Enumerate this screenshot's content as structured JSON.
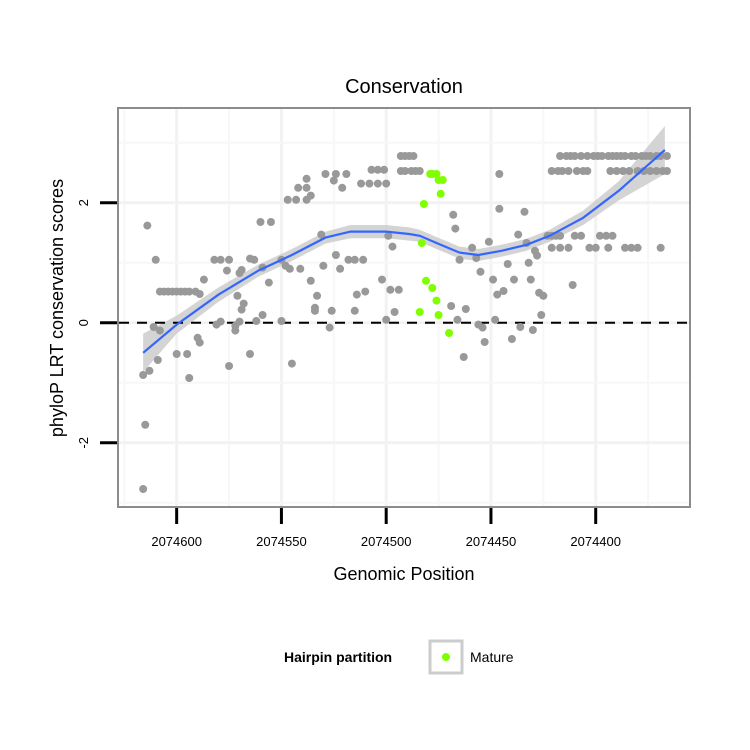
{
  "chart_data": {
    "type": "scatter",
    "title": "Conservation",
    "xlabel": "Genomic Position",
    "ylabel": "phyloP LRT conservation scores",
    "x_reversed": true,
    "xlim": [
      2074628,
      2074355
    ],
    "ylim": [
      -3.07,
      3.58
    ],
    "x_ticks": [
      2074600,
      2074550,
      2074500,
      2074450,
      2074400
    ],
    "x_tick_labels": [
      "2074600",
      "2074550",
      "2074500",
      "2074450",
      "2074400"
    ],
    "y_ticks": [
      -2,
      0,
      2
    ],
    "y_tick_labels": [
      "-2",
      "0",
      "2"
    ],
    "grid": true,
    "reference_line": {
      "y": 0,
      "style": "dashed"
    },
    "legend": {
      "title": "Hairpin partition",
      "position": "bottom",
      "entries": [
        {
          "label": "Mature",
          "color": "#7fff00"
        }
      ]
    },
    "colors": {
      "other": "#999999",
      "mature": "#7fff00",
      "smooth": "#3366ff",
      "band": "#cccccc"
    },
    "series": [
      {
        "key": "other",
        "points": [
          [
            2074616,
            -2.77
          ],
          [
            2074615,
            -1.7
          ],
          [
            2074614,
            1.62
          ],
          [
            2074616,
            -0.87
          ],
          [
            2074613,
            -0.8
          ],
          [
            2074609,
            -0.62
          ],
          [
            2074600,
            -0.52
          ],
          [
            2074595,
            -0.52
          ],
          [
            2074594,
            -0.92
          ],
          [
            2074610,
            1.05
          ],
          [
            2074608,
            0.52
          ],
          [
            2074606,
            0.52
          ],
          [
            2074604,
            0.52
          ],
          [
            2074602,
            0.52
          ],
          [
            2074600,
            0.52
          ],
          [
            2074598,
            0.52
          ],
          [
            2074596,
            0.52
          ],
          [
            2074594,
            0.52
          ],
          [
            2074591,
            0.52
          ],
          [
            2074589,
            0.48
          ],
          [
            2074611,
            -0.07
          ],
          [
            2074608,
            -0.13
          ],
          [
            2074590,
            -0.25
          ],
          [
            2074589,
            -0.33
          ],
          [
            2074587,
            0.72
          ],
          [
            2074582,
            1.05
          ],
          [
            2074579,
            1.05
          ],
          [
            2074575,
            1.05
          ],
          [
            2074576,
            0.87
          ],
          [
            2074570,
            0.83
          ],
          [
            2074570,
            0.02
          ],
          [
            2074579,
            0.02
          ],
          [
            2074581,
            -0.03
          ],
          [
            2074575,
            -0.72
          ],
          [
            2074572,
            -0.13
          ],
          [
            2074572,
            -0.05
          ],
          [
            2074571,
            0.45
          ],
          [
            2074568,
            0.32
          ],
          [
            2074569,
            0.22
          ],
          [
            2074565,
            -0.52
          ],
          [
            2074565,
            1.07
          ],
          [
            2074563,
            1.05
          ],
          [
            2074559,
            0.92
          ],
          [
            2074569,
            0.88
          ],
          [
            2074560,
            1.68
          ],
          [
            2074555,
            1.68
          ],
          [
            2074556,
            0.67
          ],
          [
            2074562,
            0.03
          ],
          [
            2074559,
            0.13
          ],
          [
            2074550,
            0.03
          ],
          [
            2074545,
            -0.68
          ],
          [
            2074550,
            1.05
          ],
          [
            2074548,
            0.95
          ],
          [
            2074546,
            0.9
          ],
          [
            2074541,
            0.9
          ],
          [
            2074536,
            0.7
          ],
          [
            2074533,
            0.45
          ],
          [
            2074534,
            0.25
          ],
          [
            2074534,
            0.2
          ],
          [
            2074526,
            0.2
          ],
          [
            2074527,
            -0.08
          ],
          [
            2074530,
            0.95
          ],
          [
            2074531,
            1.47
          ],
          [
            2074524,
            1.13
          ],
          [
            2074522,
            0.9
          ],
          [
            2074518,
            1.05
          ],
          [
            2074515,
            1.05
          ],
          [
            2074511,
            1.05
          ],
          [
            2074514,
            0.47
          ],
          [
            2074510,
            0.52
          ],
          [
            2074515,
            0.2
          ],
          [
            2074502,
            0.72
          ],
          [
            2074498,
            0.55
          ],
          [
            2074494,
            0.55
          ],
          [
            2074496,
            0.18
          ],
          [
            2074500,
            0.05
          ],
          [
            2074497,
            1.27
          ],
          [
            2074499,
            1.45
          ],
          [
            2074542,
            2.25
          ],
          [
            2074538,
            2.25
          ],
          [
            2074538,
            2.4
          ],
          [
            2074547,
            2.05
          ],
          [
            2074543,
            2.05
          ],
          [
            2074538,
            2.05
          ],
          [
            2074536,
            2.12
          ],
          [
            2074529,
            2.48
          ],
          [
            2074524,
            2.48
          ],
          [
            2074519,
            2.48
          ],
          [
            2074525,
            2.37
          ],
          [
            2074521,
            2.25
          ],
          [
            2074507,
            2.55
          ],
          [
            2074504,
            2.55
          ],
          [
            2074501,
            2.55
          ],
          [
            2074512,
            2.32
          ],
          [
            2074508,
            2.32
          ],
          [
            2074504,
            2.32
          ],
          [
            2074500,
            2.32
          ],
          [
            2074493,
            2.78
          ],
          [
            2074491,
            2.78
          ],
          [
            2074489,
            2.78
          ],
          [
            2074487,
            2.78
          ],
          [
            2074493,
            2.53
          ],
          [
            2074491,
            2.53
          ],
          [
            2074488,
            2.53
          ],
          [
            2074486,
            2.53
          ],
          [
            2074484,
            2.53
          ],
          [
            2074417,
            2.78
          ],
          [
            2074414,
            2.78
          ],
          [
            2074412,
            2.78
          ],
          [
            2074410,
            2.78
          ],
          [
            2074407,
            2.78
          ],
          [
            2074404,
            2.78
          ],
          [
            2074401,
            2.78
          ],
          [
            2074399,
            2.78
          ],
          [
            2074397,
            2.78
          ],
          [
            2074394,
            2.78
          ],
          [
            2074392,
            2.78
          ],
          [
            2074390,
            2.78
          ],
          [
            2074388,
            2.78
          ],
          [
            2074386,
            2.78
          ],
          [
            2074383,
            2.78
          ],
          [
            2074381,
            2.78
          ],
          [
            2074378,
            2.78
          ],
          [
            2074376,
            2.78
          ],
          [
            2074374,
            2.78
          ],
          [
            2074371,
            2.78
          ],
          [
            2074369,
            2.78
          ],
          [
            2074366,
            2.78
          ],
          [
            2074421,
            2.53
          ],
          [
            2074418,
            2.53
          ],
          [
            2074416,
            2.53
          ],
          [
            2074413,
            2.53
          ],
          [
            2074409,
            2.53
          ],
          [
            2074406,
            2.53
          ],
          [
            2074404,
            2.53
          ],
          [
            2074393,
            2.53
          ],
          [
            2074390,
            2.53
          ],
          [
            2074387,
            2.53
          ],
          [
            2074384,
            2.53
          ],
          [
            2074380,
            2.53
          ],
          [
            2074377,
            2.53
          ],
          [
            2074374,
            2.53
          ],
          [
            2074371,
            2.53
          ],
          [
            2074368,
            2.53
          ],
          [
            2074366,
            2.53
          ],
          [
            2074446,
            2.48
          ],
          [
            2074446,
            1.9
          ],
          [
            2074434,
            1.85
          ],
          [
            2074468,
            1.8
          ],
          [
            2074467,
            1.57
          ],
          [
            2074437,
            1.47
          ],
          [
            2074423,
            1.45
          ],
          [
            2074421,
            1.45
          ],
          [
            2074419,
            1.45
          ],
          [
            2074417,
            1.45
          ],
          [
            2074410,
            1.45
          ],
          [
            2074407,
            1.45
          ],
          [
            2074398,
            1.45
          ],
          [
            2074395,
            1.45
          ],
          [
            2074392,
            1.45
          ],
          [
            2074433,
            1.33
          ],
          [
            2074451,
            1.35
          ],
          [
            2074459,
            1.25
          ],
          [
            2074421,
            1.25
          ],
          [
            2074417,
            1.25
          ],
          [
            2074413,
            1.25
          ],
          [
            2074403,
            1.25
          ],
          [
            2074400,
            1.25
          ],
          [
            2074394,
            1.25
          ],
          [
            2074386,
            1.25
          ],
          [
            2074383,
            1.25
          ],
          [
            2074380,
            1.25
          ],
          [
            2074369,
            1.25
          ],
          [
            2074465,
            1.05
          ],
          [
            2074457,
            1.08
          ],
          [
            2074429,
            1.2
          ],
          [
            2074428,
            1.12
          ],
          [
            2074442,
            0.98
          ],
          [
            2074432,
            1.0
          ],
          [
            2074455,
            0.85
          ],
          [
            2074449,
            0.72
          ],
          [
            2074439,
            0.72
          ],
          [
            2074431,
            0.72
          ],
          [
            2074411,
            0.63
          ],
          [
            2074444,
            0.53
          ],
          [
            2074447,
            0.47
          ],
          [
            2074427,
            0.5
          ],
          [
            2074425,
            0.45
          ],
          [
            2074469,
            0.28
          ],
          [
            2074462,
            0.23
          ],
          [
            2074426,
            0.13
          ],
          [
            2074466,
            0.05
          ],
          [
            2074448,
            0.05
          ],
          [
            2074456,
            -0.03
          ],
          [
            2074454,
            -0.08
          ],
          [
            2074436,
            -0.07
          ],
          [
            2074430,
            -0.12
          ],
          [
            2074440,
            -0.27
          ],
          [
            2074453,
            -0.32
          ],
          [
            2074463,
            -0.57
          ]
        ]
      },
      {
        "key": "mature",
        "name": "Mature",
        "points": [
          [
            2074479,
            2.48
          ],
          [
            2074478,
            2.48
          ],
          [
            2074476,
            2.48
          ],
          [
            2074473,
            2.38
          ],
          [
            2074475,
            2.38
          ],
          [
            2074474,
            2.15
          ],
          [
            2074482,
            1.98
          ],
          [
            2074483,
            1.33
          ],
          [
            2074481,
            0.7
          ],
          [
            2074478,
            0.58
          ],
          [
            2074476,
            0.37
          ],
          [
            2074484,
            0.18
          ],
          [
            2074475,
            0.13
          ],
          [
            2074470,
            -0.17
          ]
        ]
      }
    ],
    "smooth": {
      "x": [
        2074616,
        2074600,
        2074580,
        2074561,
        2074545,
        2074529,
        2074517,
        2074500,
        2074489,
        2074484,
        2074474,
        2074465,
        2074456,
        2074445,
        2074433,
        2074422,
        2074406,
        2074389,
        2074367
      ],
      "y": [
        -0.5,
        -0.03,
        0.47,
        0.87,
        1.13,
        1.42,
        1.52,
        1.52,
        1.48,
        1.45,
        1.3,
        1.17,
        1.13,
        1.2,
        1.3,
        1.45,
        1.75,
        2.2,
        2.88
      ],
      "se": [
        0.32,
        0.15,
        0.12,
        0.1,
        0.1,
        0.1,
        0.11,
        0.11,
        0.11,
        0.1,
        0.1,
        0.1,
        0.1,
        0.1,
        0.1,
        0.1,
        0.12,
        0.16,
        0.4
      ]
    }
  }
}
